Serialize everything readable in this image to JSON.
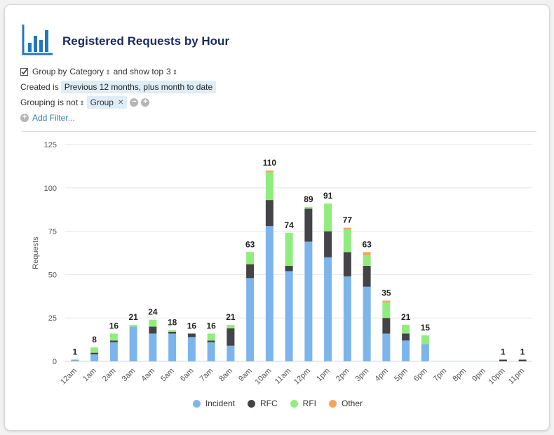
{
  "header": {
    "title": "Registered Requests by Hour",
    "icon": "bar-chart-icon"
  },
  "filters": {
    "group_by_prefix": "Group by",
    "group_by_value": "Category",
    "show_top_text": "and show top",
    "show_top_value": "3",
    "created_label": "Created is",
    "created_value": "Previous 12 months, plus month to date",
    "grouping_label": "Grouping",
    "grouping_op": "is not",
    "grouping_value": "Group",
    "add_filter": "Add Filter..."
  },
  "colors": {
    "Incident": "#7cb5ec",
    "RFC": "#434348",
    "RFI": "#90ed7d",
    "Other": "#f7a35c",
    "title": "#1b2a5f",
    "icon": "#1f78c1",
    "link": "#2d7dc6"
  },
  "chart_data": {
    "type": "bar",
    "stacked": true,
    "title": "",
    "xlabel": "",
    "ylabel": "Requests",
    "ylim": [
      0,
      125
    ],
    "yticks": [
      0,
      25,
      50,
      75,
      100,
      125
    ],
    "grid": true,
    "legend_position": "bottom",
    "categories": [
      "12am",
      "1am",
      "2am",
      "3am",
      "4am",
      "5am",
      "6am",
      "7am",
      "8am",
      "9am",
      "10am",
      "11am",
      "12pm",
      "1pm",
      "2pm",
      "3pm",
      "4pm",
      "5pm",
      "6pm",
      "7pm",
      "8pm",
      "9pm",
      "10pm",
      "11pm"
    ],
    "series": [
      {
        "name": "Incident",
        "values": [
          1,
          4,
          11,
          20,
          16,
          16,
          14,
          11,
          9,
          48,
          78,
          52,
          69,
          60,
          49,
          43,
          16,
          12,
          10,
          0,
          0,
          0,
          0,
          0
        ]
      },
      {
        "name": "RFC",
        "values": [
          0,
          1,
          1,
          0,
          4,
          1,
          2,
          1,
          10,
          8,
          15,
          3,
          19,
          15,
          14,
          12,
          9,
          4,
          0,
          0,
          0,
          0,
          1,
          1
        ]
      },
      {
        "name": "RFI",
        "values": [
          0,
          3,
          4,
          1,
          4,
          1,
          0,
          4,
          2,
          7,
          16,
          19,
          1,
          16,
          13,
          6,
          9,
          5,
          5,
          0,
          0,
          0,
          0,
          0
        ]
      },
      {
        "name": "Other",
        "values": [
          0,
          0,
          0,
          0,
          0,
          0,
          0,
          0,
          0,
          0,
          1,
          0,
          0,
          0,
          1,
          2,
          1,
          0,
          0,
          0,
          0,
          0,
          0,
          0
        ]
      }
    ],
    "totals": [
      1,
      8,
      16,
      21,
      24,
      18,
      16,
      16,
      21,
      63,
      110,
      74,
      89,
      91,
      77,
      63,
      35,
      21,
      15,
      null,
      null,
      null,
      1,
      1
    ]
  }
}
